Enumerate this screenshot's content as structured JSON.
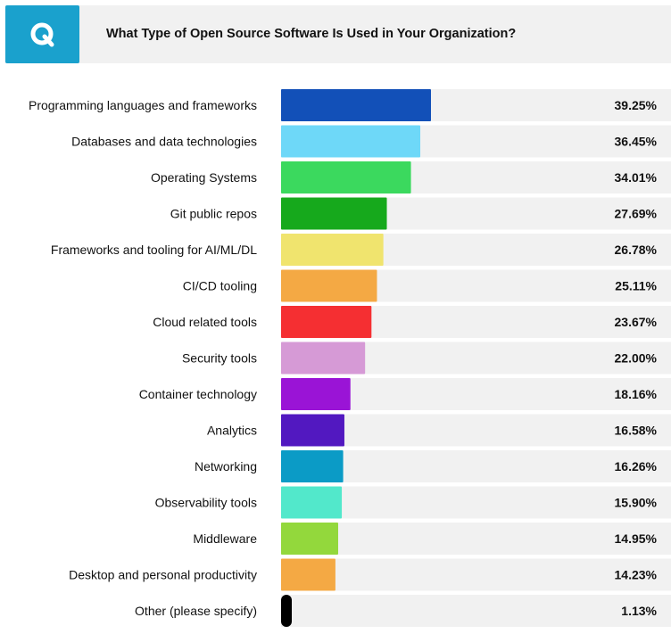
{
  "header": {
    "badge_letter": "Q",
    "title": "What Type of Open Source Software Is Used in Your Organization?"
  },
  "chart_data": {
    "type": "bar",
    "orientation": "horizontal",
    "title": "What Type of Open Source Software Is Used in Your Organization?",
    "xlabel": "",
    "ylabel": "",
    "xlim": [
      0,
      100
    ],
    "grid": false,
    "legend": "none",
    "value_format": "percent_2dp",
    "categories": [
      "Programming languages and frameworks",
      "Databases and data technologies",
      "Operating Systems",
      "Git public repos",
      "Frameworks and tooling for AI/ML/DL",
      "CI/CD tooling",
      "Cloud related tools",
      "Security tools",
      "Container technology",
      "Analytics",
      "Networking",
      "Observability tools",
      "Middleware",
      "Desktop and personal productivity",
      "Other (please specify)"
    ],
    "values": [
      39.25,
      36.45,
      34.01,
      27.69,
      26.78,
      25.11,
      23.67,
      22.0,
      18.16,
      16.58,
      16.26,
      15.9,
      14.95,
      14.23,
      1.13
    ],
    "value_labels": [
      "39.25%",
      "36.45%",
      "34.01%",
      "27.69%",
      "26.78%",
      "25.11%",
      "23.67%",
      "22.00%",
      "18.16%",
      "16.58%",
      "16.26%",
      "15.90%",
      "14.95%",
      "14.23%",
      "1.13%"
    ],
    "bar_colors": [
      "#1250b8",
      "#6ed8f8",
      "#3bd95e",
      "#16a91c",
      "#f0e46e",
      "#f4a944",
      "#f52f32",
      "#d69ad6",
      "#9a14d6",
      "#5218c0",
      "#0b9bc6",
      "#52e8cb",
      "#93d83c",
      "#f4a944",
      "#000000"
    ],
    "track_color": "#f1f1f1"
  },
  "colors": {
    "badge": "#1aa1cd",
    "header_bg": "#f1f1f1",
    "text": "#111111"
  }
}
